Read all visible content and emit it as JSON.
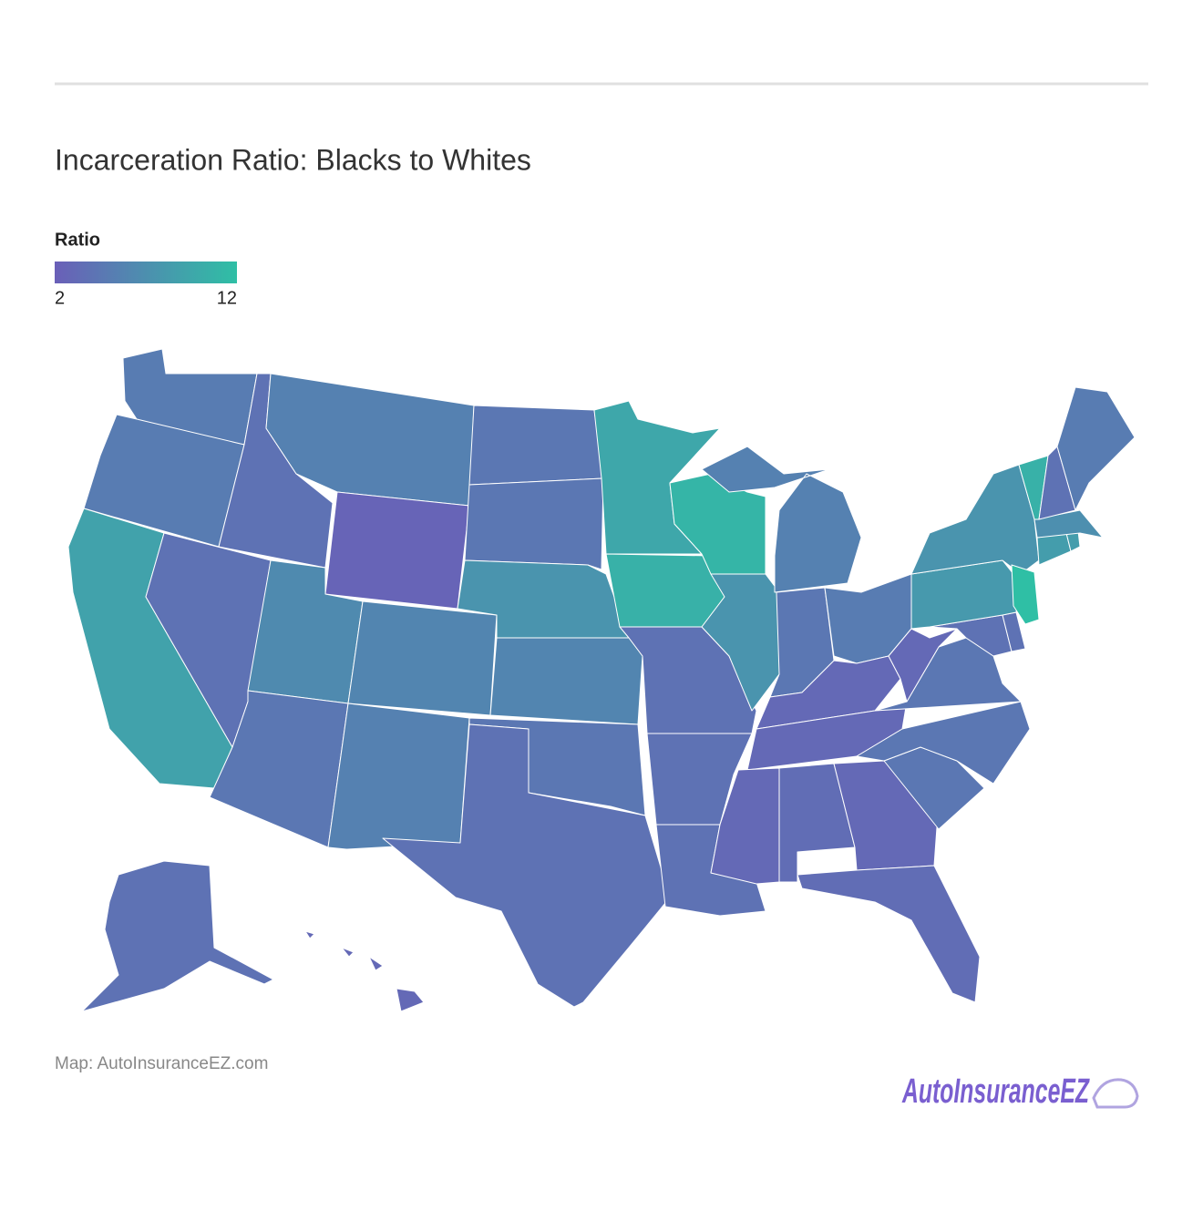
{
  "chart_data": {
    "type": "choropleth",
    "title": "Incarceration Ratio: Blacks to Whites",
    "legend": {
      "title": "Ratio",
      "range": [
        2,
        12
      ],
      "ticks": [
        2,
        12
      ],
      "colors": [
        "#6a5fb8",
        "#2fbfa5"
      ]
    },
    "values": [
      5,
      5,
      9,
      4,
      4,
      5.5,
      2.5,
      6.5,
      6,
      4.5,
      5.5,
      4.5,
      4.5,
      7.5,
      6,
      4.5,
      4,
      9.5,
      10.5,
      4,
      4,
      4,
      11,
      7.5,
      5.5,
      4.5,
      5,
      3,
      3,
      3,
      3.5,
      3,
      3.5,
      4.5,
      4.5,
      4.5,
      3,
      4,
      4,
      8,
      7.5,
      12,
      8.5,
      8.5,
      7,
      10.5,
      4,
      5,
      4,
      3
    ],
    "source": "Map: AutoInsuranceEZ.com",
    "logo": "AutoInsuranceEZ"
  }
}
